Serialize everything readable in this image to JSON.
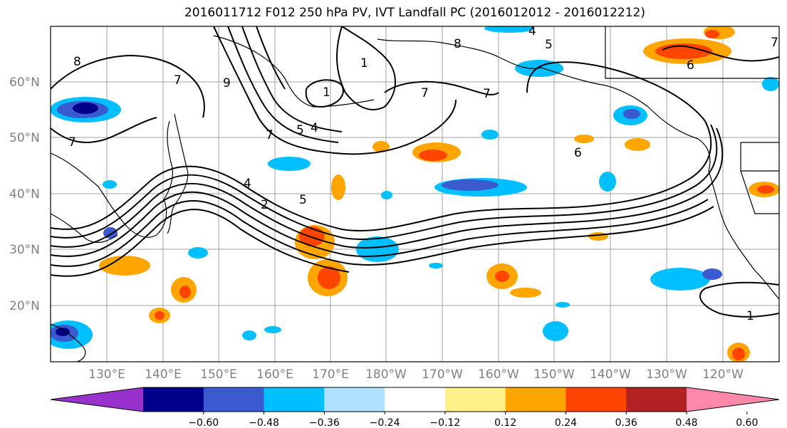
{
  "title": "2016011712 F012 250 hPa PV, IVT Landfall PC (2016012012 - 2016012212)",
  "lat_labels": [
    "60°N",
    "50°N",
    "40°N",
    "30°N",
    "20°N"
  ],
  "lon_labels": [
    "130°E",
    "140°E",
    "150°E",
    "160°E",
    "170°E",
    "180°W",
    "170°W",
    "160°W",
    "150°W",
    "140°W",
    "130°W",
    "120°W"
  ],
  "colorbar": {
    "ticks": [
      "−0.60",
      "−0.48",
      "−0.36",
      "−0.24",
      "−0.12",
      "0.12",
      "0.24",
      "0.36",
      "0.48",
      "0.60"
    ],
    "colors": [
      "#9932cc",
      "#00008b",
      "#3a5bcf",
      "#00bfff",
      "#b0e2ff",
      "#ffffff",
      "#fff08a",
      "#ffa500",
      "#ff4500",
      "#b22222",
      "#ff88aa"
    ]
  },
  "contour_labels": [
    "8",
    "7",
    "7",
    "9",
    "1",
    "4",
    "5",
    "7",
    "1",
    "7",
    "8",
    "4",
    "5",
    "6",
    "6",
    "7",
    "7",
    "4",
    "2",
    "5",
    "1"
  ]
}
